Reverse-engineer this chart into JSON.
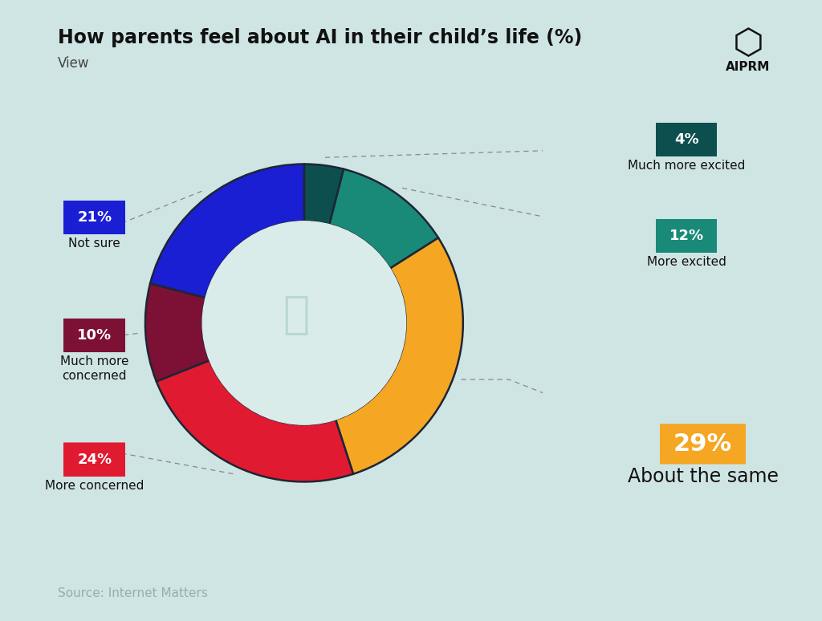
{
  "title": "How parents feel about AI in their child’s life (%)",
  "subtitle": "View",
  "source": "Source: Internet Matters",
  "background_color": "#cfe5e3",
  "segments": [
    {
      "label": "Much more excited",
      "value": 4,
      "color": "#0d4f4f"
    },
    {
      "label": "More excited",
      "value": 12,
      "color": "#1a8a78"
    },
    {
      "label": "About the same",
      "value": 29,
      "color": "#f5a623"
    },
    {
      "label": "More concerned",
      "value": 24,
      "color": "#e01a30"
    },
    {
      "label": "Much more\nconcerned",
      "value": 10,
      "color": "#7d1035"
    },
    {
      "label": "Not sure",
      "value": 21,
      "color": "#1a1fd4"
    }
  ],
  "donut_inner_color": "#daecea",
  "donut_edge_color": "#1e2535",
  "title_fontsize": 17,
  "subtitle_fontsize": 12,
  "source_fontsize": 11,
  "source_color": "#90b0ae",
  "title_color": "#111111",
  "subtitle_color": "#444444"
}
